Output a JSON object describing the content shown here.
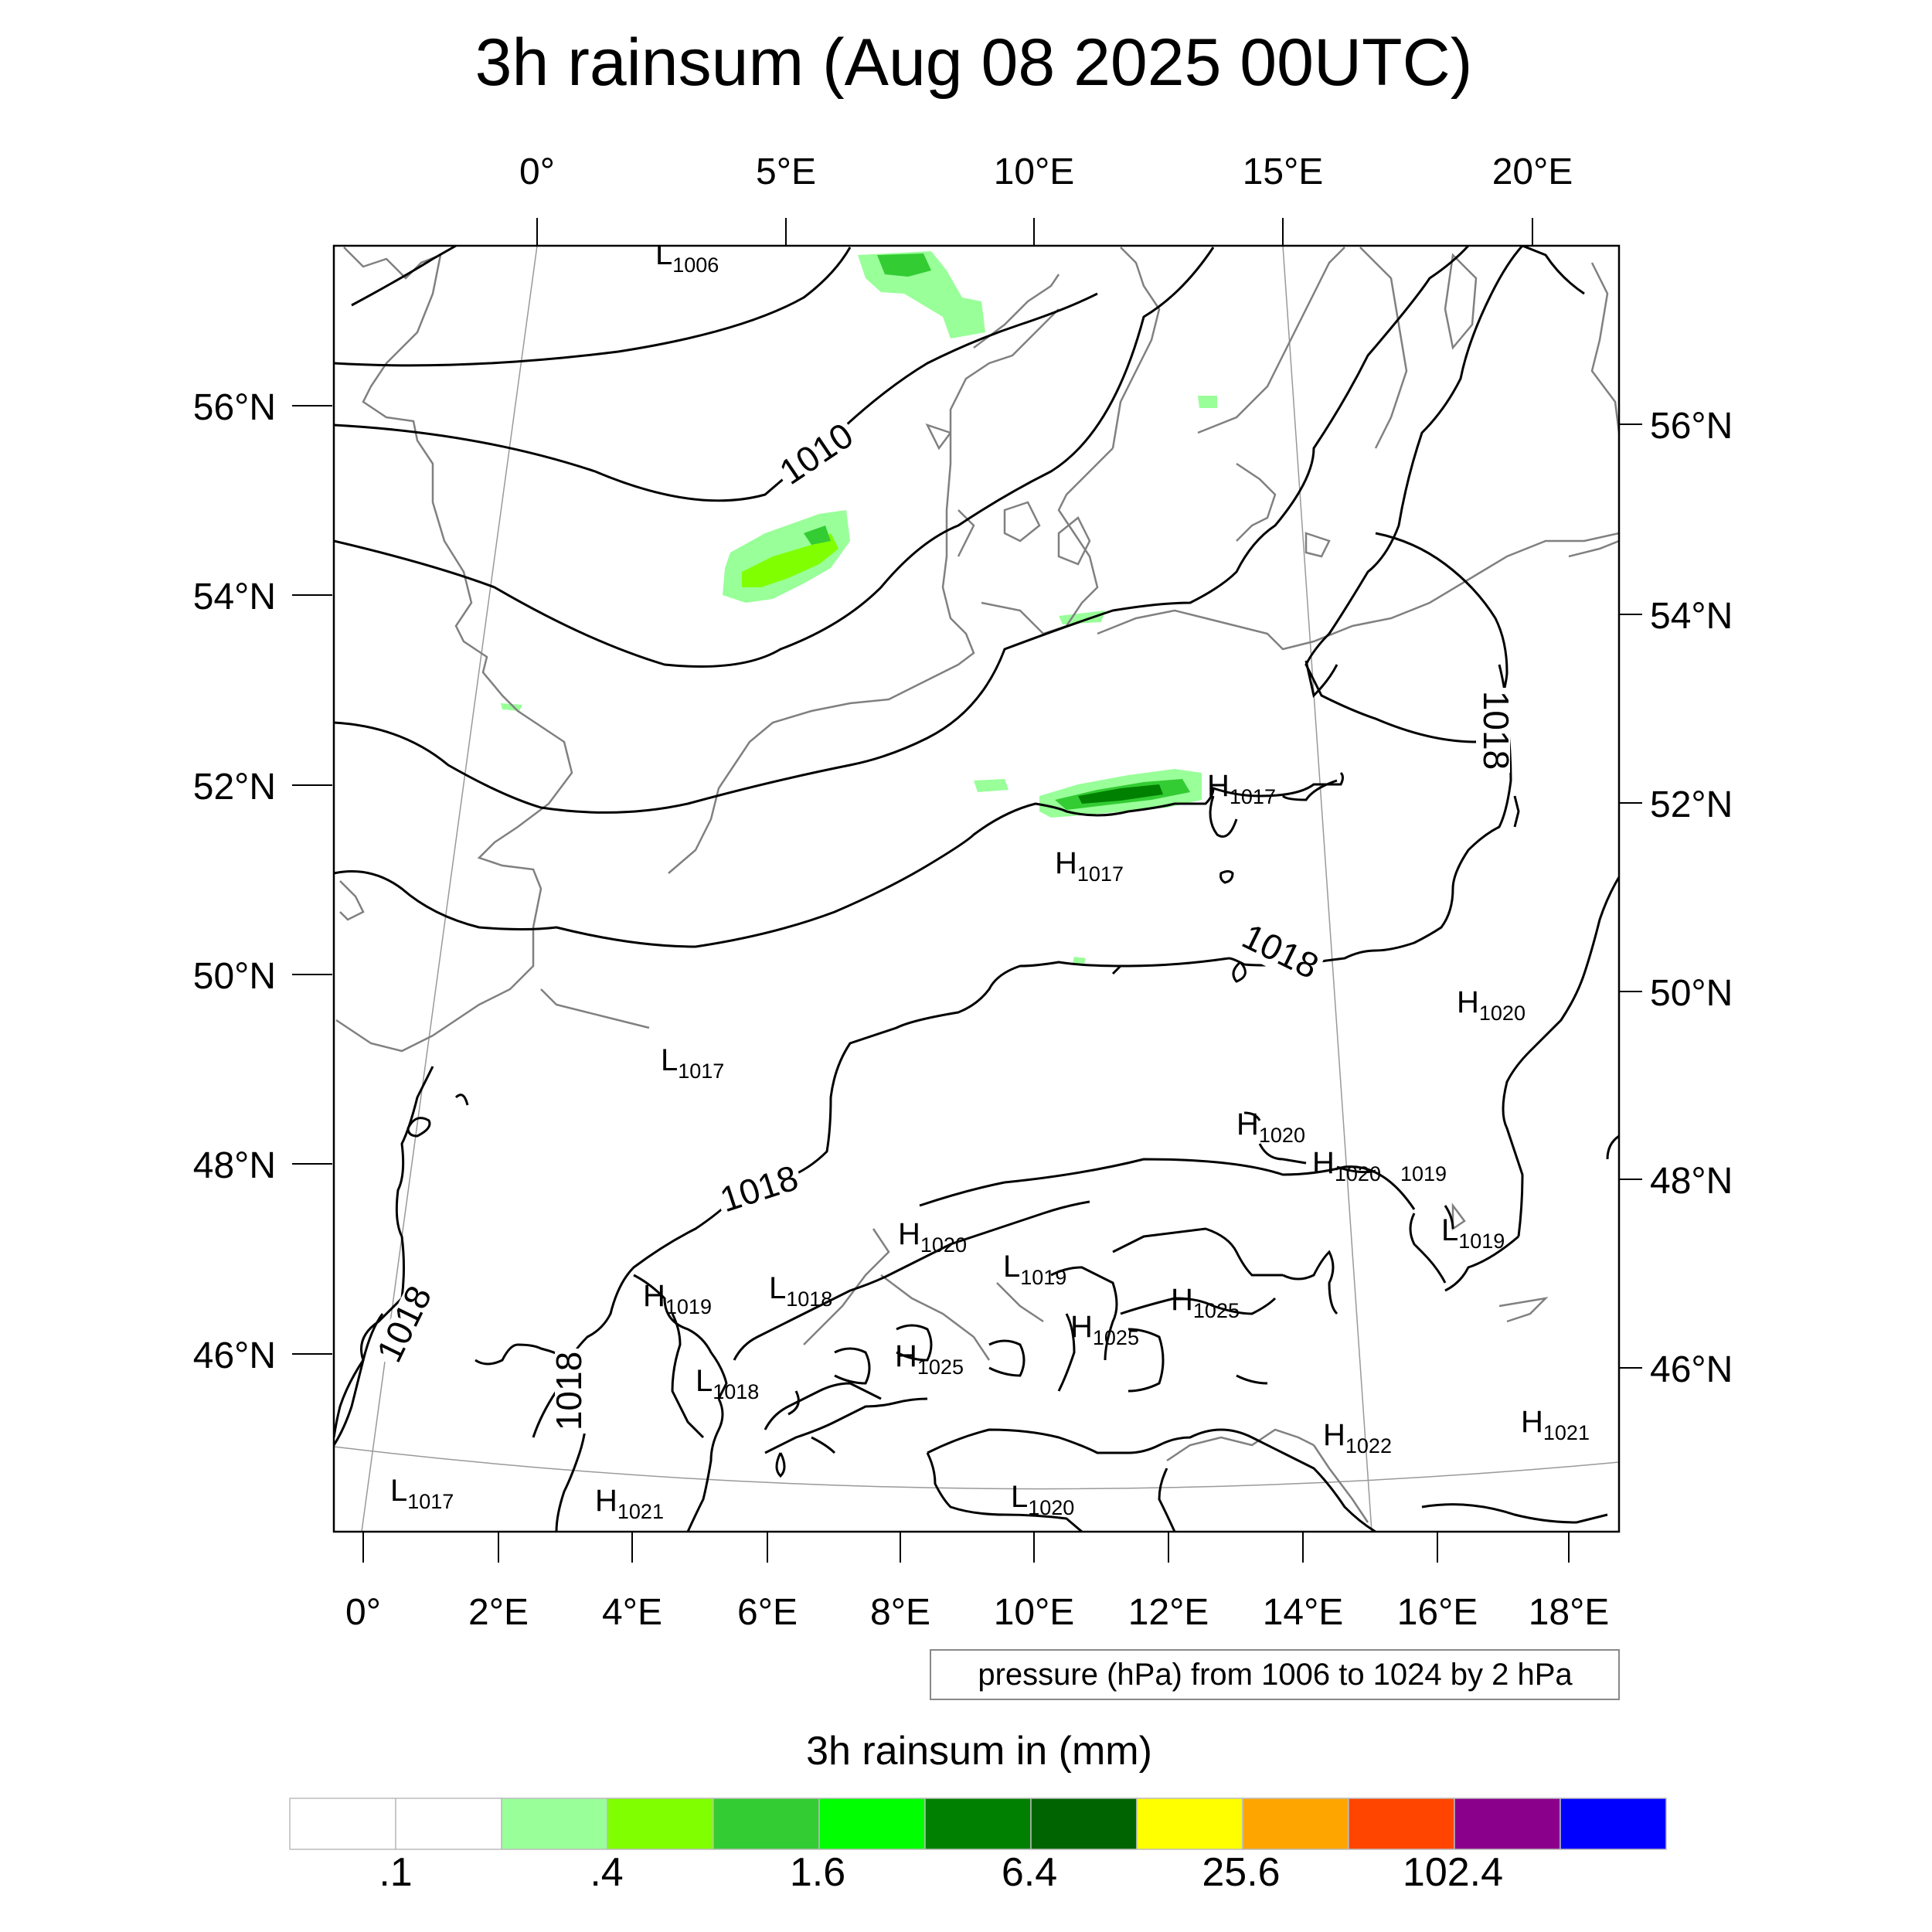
{
  "title": "3h rainsum (Aug 08 2025 00UTC)",
  "top_lon_labels": [
    "0°",
    "5°E",
    "10°E",
    "15°E",
    "20°E"
  ],
  "left_lat_labels": [
    "56°N",
    "54°N",
    "52°N",
    "50°N",
    "48°N",
    "46°N"
  ],
  "right_lat_labels": [
    "56°N",
    "54°N",
    "52°N",
    "50°N",
    "48°N",
    "46°N"
  ],
  "bottom_lon_labels": [
    "0°",
    "2°E",
    "4°E",
    "6°E",
    "8°E",
    "10°E",
    "12°E",
    "14°E",
    "16°E",
    "18°E"
  ],
  "contour_labels": [
    "1010",
    "1018",
    "1018",
    "1018",
    "1018",
    "1018"
  ],
  "pressure_centers": [
    {
      "letter": "L",
      "value": "1006"
    },
    {
      "letter": "H",
      "value": "1017"
    },
    {
      "letter": "H",
      "value": "1017"
    },
    {
      "letter": "H",
      "value": "1020"
    },
    {
      "letter": "L",
      "value": "1017"
    },
    {
      "letter": "H",
      "value": "1020"
    },
    {
      "letter": "H",
      "value": "1020"
    },
    {
      "letter": "",
      "value": "1019"
    },
    {
      "letter": "H",
      "value": "1020"
    },
    {
      "letter": "L",
      "value": "1019"
    },
    {
      "letter": "H",
      "value": "1019"
    },
    {
      "letter": "L",
      "value": "1018"
    },
    {
      "letter": "L",
      "value": "1019"
    },
    {
      "letter": "H",
      "value": "1025"
    },
    {
      "letter": "H",
      "value": "1025"
    },
    {
      "letter": "H",
      "value": "1025"
    },
    {
      "letter": "L",
      "value": "1018"
    },
    {
      "letter": "H",
      "value": "1022"
    },
    {
      "letter": "H",
      "value": "1021"
    },
    {
      "letter": "L",
      "value": "1017"
    },
    {
      "letter": "H",
      "value": "1021"
    },
    {
      "letter": "L",
      "value": "1020"
    }
  ],
  "info_box": "pressure (hPa) from 1006 to 1024 by 2 hPa",
  "colorbar": {
    "title": "3h rainsum in (mm)",
    "colors": [
      "#ffffff",
      "#ffffff",
      "#99ff99",
      "#80ff00",
      "#33cc33",
      "#00ff00",
      "#008000",
      "#006400",
      "#ffff00",
      "#ffa500",
      "#ff4500",
      "#8b008b",
      "#0000ff"
    ],
    "tick_labels": [
      ".1",
      ".4",
      "1.6",
      "6.4",
      "25.6",
      "102.4"
    ]
  }
}
